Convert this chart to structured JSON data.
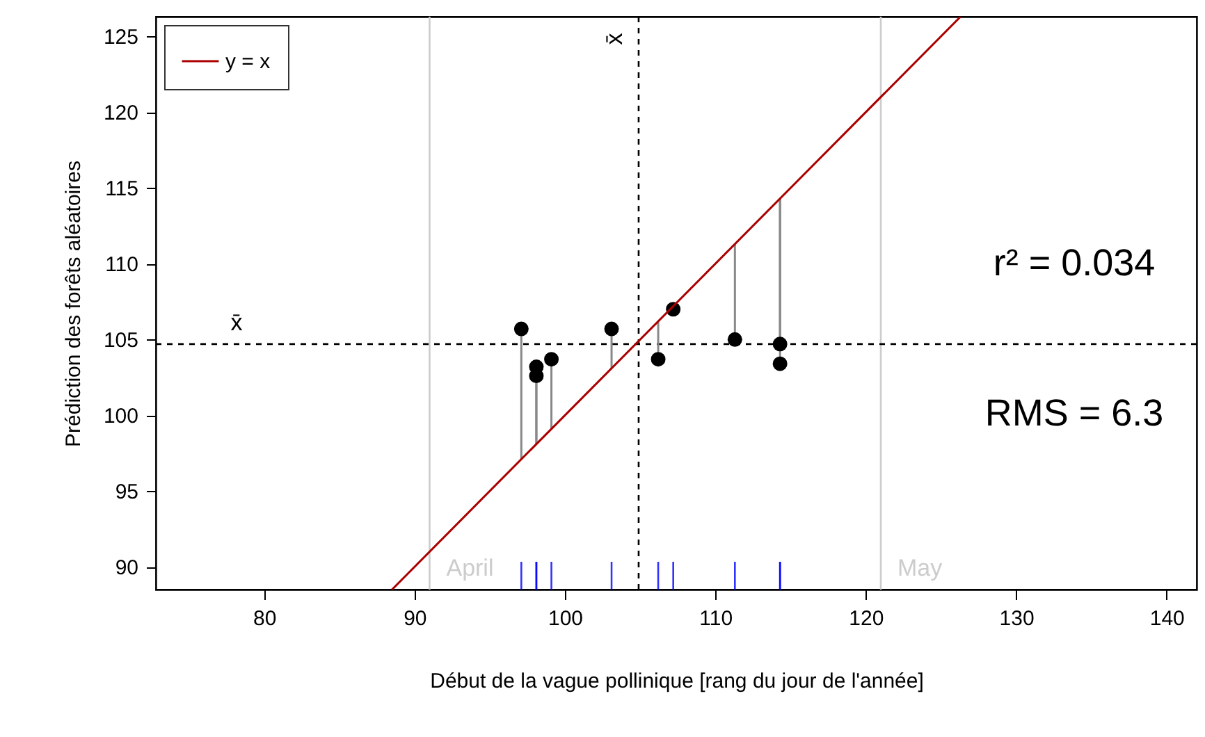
{
  "chart_data": {
    "type": "scatter",
    "xlabel": "Début de la vague pollinique [rang du jour de l'année]",
    "ylabel": "Prédiction des forêts aléatoires",
    "xlim": [
      72.8,
      142
    ],
    "xticks": [
      80,
      90,
      100,
      110,
      120,
      130,
      140
    ],
    "ylim": [
      88.5,
      126.3
    ],
    "yticks": [
      90,
      95,
      100,
      105,
      110,
      115,
      120,
      125
    ],
    "series": [
      {
        "color": "#000000",
        "x": [
          97.1,
          98.1,
          98.1,
          99.1,
          103.1,
          106.2,
          107.2,
          111.3,
          114.3,
          114.3
        ],
        "values": [
          105.7,
          103.2,
          102.6,
          103.7,
          105.7,
          103.7,
          107.0,
          105.0,
          104.7,
          103.4
        ],
        "errors": [
          [
            97.1,
            105.7
          ],
          [
            98.1,
            103.2
          ],
          [
            98.1,
            102.6
          ],
          [
            99.1,
            103.7
          ],
          [
            103.1,
            105.7
          ],
          [
            103.7,
            106.2
          ],
          [
            107.0,
            107.2
          ],
          [
            105.0,
            111.3
          ],
          [
            104.7,
            114.3
          ],
          [
            103.4,
            114.3
          ]
        ]
      },
      {
        "type": "line",
        "name": "y = x",
        "color": "#aa0000",
        "x": [
          88.5,
          126.3
        ],
        "values": [
          88.5,
          126.3
        ],
        "line_style": "solid",
        "marker": "none"
      }
    ],
    "ref_lines": [
      {
        "axis": "x",
        "value": 91,
        "label": "April",
        "color": "#cccccc"
      },
      {
        "axis": "x",
        "value": 121,
        "label": "May",
        "color": "#cccccc"
      },
      {
        "axis": "x",
        "value": 104.9,
        "label": "x̄",
        "color": "#000000",
        "line_style": "dashed"
      },
      {
        "axis": "y",
        "value": 104.7,
        "label": "x̄",
        "color": "#000000",
        "line_style": "dashed"
      }
    ],
    "annotations": [
      "r² = 0.034",
      "RMS = 6.3"
    ],
    "marker": "circle",
    "legend": "top left",
    "grid": false
  }
}
